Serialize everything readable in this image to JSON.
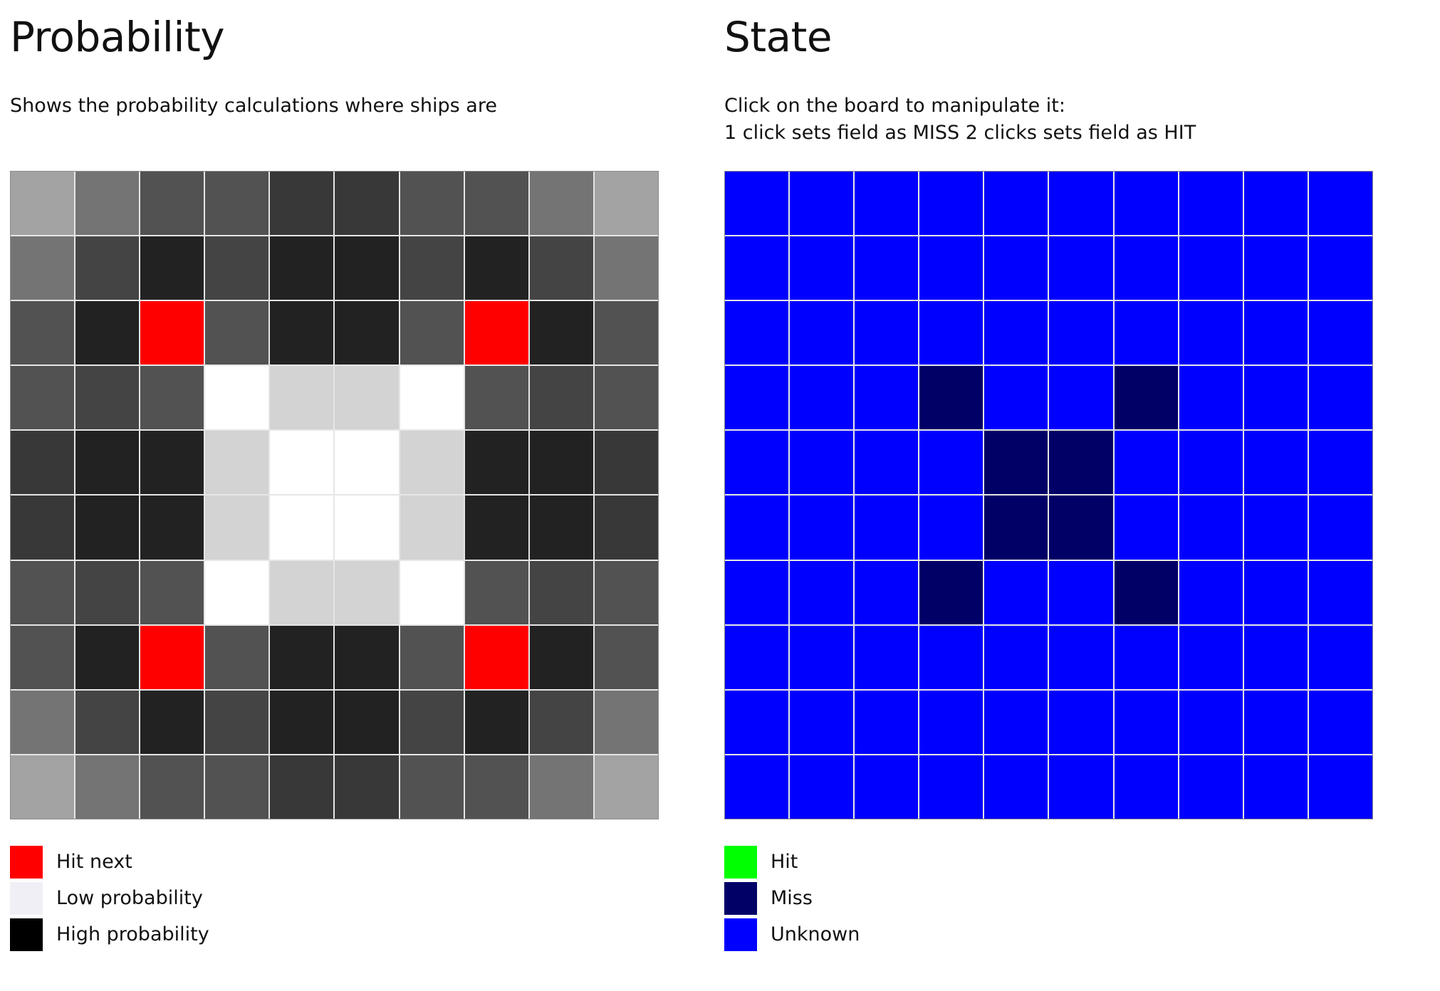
{
  "probability": {
    "title": "Probability",
    "description": "Shows the probability calculations where ships are",
    "colors": {
      "hit_next": "#ff0000",
      "very_high": "#222222",
      "high": "#383838",
      "medium_high": "#444444",
      "medium": "#525252",
      "medium_low": "#747474",
      "low": "#a3a3a3",
      "very_low": "#d3d3d3",
      "none": "#ffffff"
    },
    "grid": [
      [
        "low",
        "medium_low",
        "medium",
        "medium",
        "high",
        "high",
        "medium",
        "medium",
        "medium_low",
        "low"
      ],
      [
        "medium_low",
        "medium_high",
        "very_high",
        "medium_high",
        "very_high",
        "very_high",
        "medium_high",
        "very_high",
        "medium_high",
        "medium_low"
      ],
      [
        "medium",
        "very_high",
        "hit_next",
        "medium",
        "very_high",
        "very_high",
        "medium",
        "hit_next",
        "very_high",
        "medium"
      ],
      [
        "medium",
        "medium_high",
        "medium",
        "none",
        "very_low",
        "very_low",
        "none",
        "medium",
        "medium_high",
        "medium"
      ],
      [
        "high",
        "very_high",
        "very_high",
        "very_low",
        "none",
        "none",
        "very_low",
        "very_high",
        "very_high",
        "high"
      ],
      [
        "high",
        "very_high",
        "very_high",
        "very_low",
        "none",
        "none",
        "very_low",
        "very_high",
        "very_high",
        "high"
      ],
      [
        "medium",
        "medium_high",
        "medium",
        "none",
        "very_low",
        "very_low",
        "none",
        "medium",
        "medium_high",
        "medium"
      ],
      [
        "medium",
        "very_high",
        "hit_next",
        "medium",
        "very_high",
        "very_high",
        "medium",
        "hit_next",
        "very_high",
        "medium"
      ],
      [
        "medium_low",
        "medium_high",
        "very_high",
        "medium_high",
        "very_high",
        "very_high",
        "medium_high",
        "very_high",
        "medium_high",
        "medium_low"
      ],
      [
        "low",
        "medium_low",
        "medium",
        "medium",
        "high",
        "high",
        "medium",
        "medium",
        "medium_low",
        "low"
      ]
    ],
    "legend": [
      {
        "label": "Hit next",
        "color": "#ff0000"
      },
      {
        "label": "Low probability",
        "color": "#f1eff6"
      },
      {
        "label": "High probability",
        "color": "#000000"
      }
    ]
  },
  "state": {
    "title": "State",
    "description_lines": [
      "Click on the board to manipulate it:",
      "1 click sets field as MISS 2 clicks sets field as HIT"
    ],
    "colors": {
      "hit": "#00ff00",
      "miss": "#000066",
      "unknown": "#0000ff"
    },
    "grid": [
      [
        "unknown",
        "unknown",
        "unknown",
        "unknown",
        "unknown",
        "unknown",
        "unknown",
        "unknown",
        "unknown",
        "unknown"
      ],
      [
        "unknown",
        "unknown",
        "unknown",
        "unknown",
        "unknown",
        "unknown",
        "unknown",
        "unknown",
        "unknown",
        "unknown"
      ],
      [
        "unknown",
        "unknown",
        "unknown",
        "unknown",
        "unknown",
        "unknown",
        "unknown",
        "unknown",
        "unknown",
        "unknown"
      ],
      [
        "unknown",
        "unknown",
        "unknown",
        "miss",
        "unknown",
        "unknown",
        "miss",
        "unknown",
        "unknown",
        "unknown"
      ],
      [
        "unknown",
        "unknown",
        "unknown",
        "unknown",
        "miss",
        "miss",
        "unknown",
        "unknown",
        "unknown",
        "unknown"
      ],
      [
        "unknown",
        "unknown",
        "unknown",
        "unknown",
        "miss",
        "miss",
        "unknown",
        "unknown",
        "unknown",
        "unknown"
      ],
      [
        "unknown",
        "unknown",
        "unknown",
        "miss",
        "unknown",
        "unknown",
        "miss",
        "unknown",
        "unknown",
        "unknown"
      ],
      [
        "unknown",
        "unknown",
        "unknown",
        "unknown",
        "unknown",
        "unknown",
        "unknown",
        "unknown",
        "unknown",
        "unknown"
      ],
      [
        "unknown",
        "unknown",
        "unknown",
        "unknown",
        "unknown",
        "unknown",
        "unknown",
        "unknown",
        "unknown",
        "unknown"
      ],
      [
        "unknown",
        "unknown",
        "unknown",
        "unknown",
        "unknown",
        "unknown",
        "unknown",
        "unknown",
        "unknown",
        "unknown"
      ]
    ],
    "legend": [
      {
        "label": "Hit",
        "color": "#00ff00"
      },
      {
        "label": "Miss",
        "color": "#000066"
      },
      {
        "label": "Unknown",
        "color": "#0000ff"
      }
    ]
  }
}
